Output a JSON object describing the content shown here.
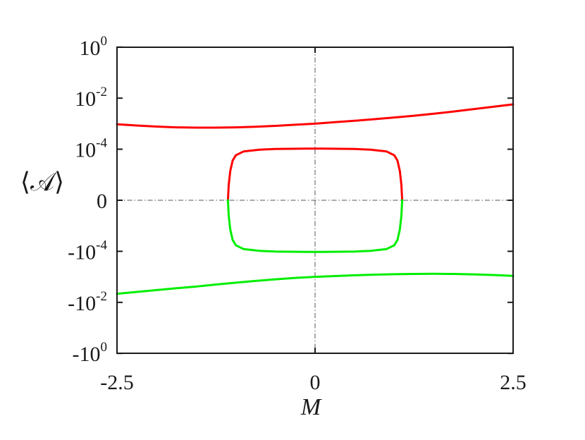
{
  "chart_data": {
    "type": "line",
    "title": "",
    "xlabel": "M",
    "ylabel": "⟨𝒜⟩",
    "xlim": [
      -2.5,
      2.5
    ],
    "ylim": [
      -1,
      1
    ],
    "y_scale": "symmetric-log",
    "grid": false,
    "legend": "none",
    "reference_lines": {
      "x": 0,
      "y": 0,
      "style": "dash-dot"
    },
    "x_ticks": [
      {
        "value": -2.5,
        "label": "-2.5"
      },
      {
        "value": 0,
        "label": "0"
      },
      {
        "value": 2.5,
        "label": "2.5"
      }
    ],
    "y_ticks": [
      {
        "value": 1,
        "base": "10",
        "exp": "0"
      },
      {
        "value": 0.01,
        "base": "10",
        "exp": "-2"
      },
      {
        "value": 0.0001,
        "base": "10",
        "exp": "-4"
      },
      {
        "value": 0,
        "base": "0",
        "exp": ""
      },
      {
        "value": -0.0001,
        "base": "-10",
        "exp": "-4"
      },
      {
        "value": -0.01,
        "base": "-10",
        "exp": "-2"
      },
      {
        "value": -1,
        "base": "-10",
        "exp": "0"
      }
    ],
    "series": [
      {
        "color": "#ff0000",
        "x": [
          -2.5,
          -2.25,
          -2.0,
          -1.75,
          -1.5,
          -1.25,
          -1.0,
          -0.75,
          -0.5,
          -0.25,
          0.0,
          0.25,
          0.5,
          0.75,
          1.0,
          1.25,
          1.5,
          1.75,
          2.0,
          2.25,
          2.5
        ],
        "y": [
          0.00095,
          0.00085,
          0.00077,
          0.00072,
          0.0007,
          0.0007,
          0.00072,
          0.00076,
          0.00082,
          0.00091,
          0.001,
          0.00114,
          0.0013,
          0.0015,
          0.00175,
          0.00205,
          0.00245,
          0.003,
          0.0037,
          0.0046,
          0.0057
        ]
      },
      {
        "color": "#ff0000",
        "x": [
          -1.1,
          -1.09,
          -1.07,
          -1.04,
          -1.0,
          -0.9,
          -0.7,
          -0.5,
          -0.3,
          -0.1,
          0.0,
          0.1,
          0.3,
          0.5,
          0.7,
          0.9,
          1.0,
          1.04,
          1.07,
          1.09,
          1.1
        ],
        "y": [
          0.0,
          4e-06,
          1.4e-05,
          3.6e-05,
          5.8e-05,
          8.2e-05,
          9.6e-05,
          0.000102,
          0.000104,
          0.000105,
          0.000105,
          0.000105,
          0.000104,
          0.000102,
          9.6e-05,
          8.2e-05,
          5.8e-05,
          3.6e-05,
          1.4e-05,
          4e-06,
          0.0
        ]
      },
      {
        "color": "#00ee00",
        "x": [
          -1.1,
          -1.09,
          -1.07,
          -1.04,
          -1.0,
          -0.9,
          -0.7,
          -0.5,
          -0.3,
          -0.1,
          0.0,
          0.1,
          0.3,
          0.5,
          0.7,
          0.9,
          1.0,
          1.04,
          1.07,
          1.09,
          1.1
        ],
        "y": [
          0.0,
          -4e-06,
          -1.4e-05,
          -3.6e-05,
          -5.8e-05,
          -8.2e-05,
          -9.6e-05,
          -0.000102,
          -0.000104,
          -0.000105,
          -0.000105,
          -0.000105,
          -0.000104,
          -0.000102,
          -9.6e-05,
          -8.2e-05,
          -5.8e-05,
          -3.6e-05,
          -1.4e-05,
          -4e-06,
          0.0
        ]
      },
      {
        "color": "#00ee00",
        "x": [
          -2.5,
          -2.25,
          -2.0,
          -1.75,
          -1.5,
          -1.25,
          -1.0,
          -0.75,
          -0.5,
          -0.25,
          0.0,
          0.25,
          0.5,
          0.75,
          1.0,
          1.25,
          1.5,
          1.75,
          2.0,
          2.25,
          2.5
        ],
        "y": [
          -0.0046,
          -0.0039,
          -0.0033,
          -0.0028,
          -0.0024,
          -0.002,
          -0.0017,
          -0.00145,
          -0.00125,
          -0.0011,
          -0.001,
          -0.00093,
          -0.00087,
          -0.00082,
          -0.00079,
          -0.00077,
          -0.00076,
          -0.00077,
          -0.0008,
          -0.00085,
          -0.00092
        ]
      }
    ]
  }
}
